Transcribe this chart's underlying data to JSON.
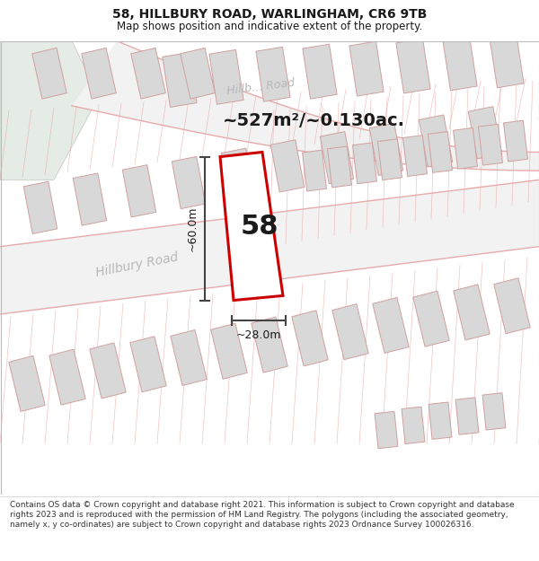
{
  "title_line1": "58, HILLBURY ROAD, WARLINGHAM, CR6 9TB",
  "title_line2": "Map shows position and indicative extent of the property.",
  "area_label": "~527m²/~0.130ac.",
  "property_number": "58",
  "dim_width": "~28.0m",
  "dim_height": "~60.0m",
  "road_label1": "Hillbury Road",
  "road_label2": "Hillb… Road",
  "footer_text": "Contains OS data © Crown copyright and database right 2021. This information is subject to Crown copyright and database rights 2023 and is reproduced with the permission of HM Land Registry. The polygons (including the associated geometry, namely x, y co-ordinates) are subject to Crown copyright and database rights 2023 Ordnance Survey 100026316.",
  "map_bg": "#f7f7f7",
  "plot_outline_color": "#cc0000",
  "building_fill": "#d8d8d8",
  "building_stroke": "#d0a0a0",
  "green_area": "#e5ebe5",
  "road_line_color": "#e8aaaa",
  "dim_line_color": "#444444",
  "text_color": "#1a1a1a",
  "road_text_color": "#b8b8b8",
  "map_border_color": "#bbbbbb",
  "title_fontsize": 10,
  "subtitle_fontsize": 8.5,
  "area_fontsize": 14,
  "number_fontsize": 22,
  "dim_fontsize": 9,
  "road_fontsize": 10,
  "footer_fontsize": 6.5
}
